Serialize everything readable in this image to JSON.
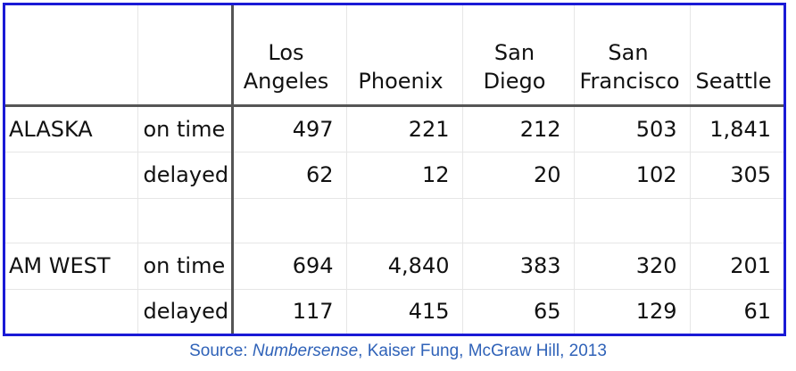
{
  "table": {
    "columns": [
      "Los Angeles",
      "Phoenix",
      "San Diego",
      "San Francisco",
      "Seattle"
    ],
    "column_lines": [
      [
        "Los",
        "Angeles"
      ],
      [
        "Phoenix"
      ],
      [
        "San",
        "Diego"
      ],
      [
        "San",
        "Francisco"
      ],
      [
        "Seattle"
      ]
    ],
    "airlines": [
      {
        "name": "ALASKA",
        "rows": [
          {
            "label": "on time",
            "values": [
              "497",
              "221",
              "212",
              "503",
              "1,841"
            ]
          },
          {
            "label": "delayed",
            "values": [
              "62",
              "12",
              "20",
              "102",
              "305"
            ]
          }
        ]
      },
      {
        "name": "AM WEST",
        "rows": [
          {
            "label": "on time",
            "values": [
              "694",
              "4,840",
              "383",
              "320",
              "201"
            ]
          },
          {
            "label": "delayed",
            "values": [
              "117",
              "415",
              "65",
              "129",
              "61"
            ]
          }
        ]
      }
    ]
  },
  "source": {
    "prefix": "Source:  ",
    "title": "Numbersense",
    "suffix": ", Kaiser Fung, McGraw Hill, 2013"
  },
  "colors": {
    "frame_border": "#1a1ad6",
    "source_text": "#2f62b8",
    "divider": "#555555"
  }
}
